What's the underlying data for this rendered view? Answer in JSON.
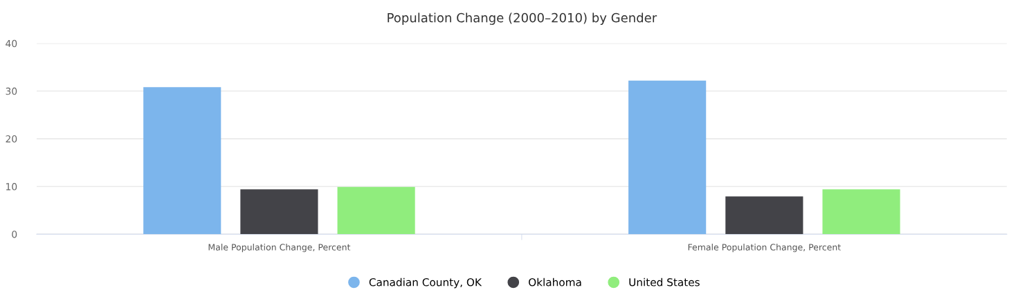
{
  "chart_data": {
    "type": "bar",
    "title": "Population Change (2000–2010) by Gender",
    "categories": [
      "Male Population Change, Percent",
      "Female Population Change, Percent"
    ],
    "series": [
      {
        "name": "Canadian County, OK",
        "color": "#7cb5ec",
        "values": [
          30.8,
          32.2
        ]
      },
      {
        "name": "Oklahoma",
        "color": "#434348",
        "values": [
          9.4,
          7.9
        ]
      },
      {
        "name": "United States",
        "color": "#90ed7d",
        "values": [
          9.9,
          9.4
        ]
      }
    ],
    "ylim": [
      0,
      40
    ],
    "yticks": [
      0,
      10,
      20,
      30,
      40
    ],
    "grid": "y",
    "legend": "bottom"
  }
}
